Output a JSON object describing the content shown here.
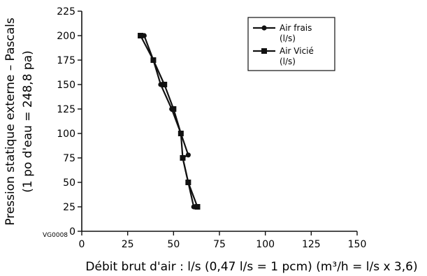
{
  "chart_data": {
    "type": "line",
    "x_label": "Débit brut d'air : l/s (0,47 l/s = 1 pcm) (m³/h = l/s x 3,6)",
    "y_label_line1": "Pression statique externe – Pascals",
    "y_label_line2": "(1 po d'eau = 248,8 pa)",
    "figure_code": "VG0008",
    "xlim": [
      0,
      150
    ],
    "ylim": [
      0,
      225
    ],
    "x_ticks": [
      0,
      25,
      50,
      75,
      100,
      125,
      150
    ],
    "y_ticks": [
      0,
      25,
      50,
      75,
      100,
      125,
      150,
      175,
      200,
      225
    ],
    "grid": false,
    "legend_position": "top-right",
    "series": [
      {
        "name": "Air frais",
        "unit": "(l/s)",
        "marker": "circle",
        "points": [
          [
            34,
            200
          ],
          [
            39,
            175
          ],
          [
            43,
            150
          ],
          [
            49,
            125
          ],
          [
            54,
            100
          ],
          [
            58,
            78
          ],
          [
            55,
            75
          ],
          [
            58,
            50
          ],
          [
            61,
            25
          ]
        ]
      },
      {
        "name": "Air Vicié",
        "unit": "(l/s)",
        "marker": "square",
        "points": [
          [
            32,
            200
          ],
          [
            39,
            175
          ],
          [
            45,
            150
          ],
          [
            50,
            125
          ],
          [
            54,
            100
          ],
          [
            55,
            75
          ],
          [
            58,
            50
          ],
          [
            63,
            25
          ]
        ]
      }
    ]
  }
}
